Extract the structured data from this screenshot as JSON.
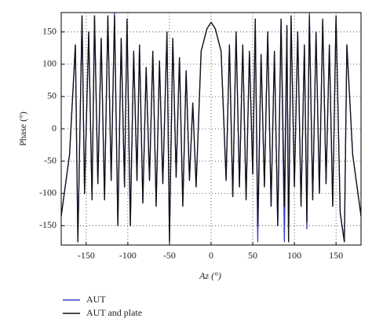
{
  "chart_data": {
    "type": "line",
    "xlabel": "Az (°)",
    "ylabel": "Phase (°)",
    "x": [
      -180,
      -170,
      -163,
      -160,
      -155,
      -152,
      -147,
      -143,
      -140,
      -136,
      -132,
      -128,
      -124,
      -120,
      -116,
      -112,
      -108,
      -104,
      -101,
      -97,
      -93,
      -89,
      -86,
      -82,
      -78,
      -74,
      -70,
      -66,
      -62,
      -58,
      -53,
      -50,
      -46,
      -42,
      -38,
      -34,
      -30,
      -26,
      -22,
      -18,
      -12,
      -5,
      0,
      5,
      12,
      18,
      22,
      26,
      30,
      34,
      38,
      42,
      46,
      50,
      53,
      56,
      60,
      64,
      68,
      72,
      76,
      80,
      84,
      88,
      91,
      93,
      96,
      100,
      104,
      108,
      112,
      115,
      118,
      122,
      126,
      130,
      134,
      138,
      142,
      146,
      150,
      155,
      160,
      163,
      170,
      180
    ],
    "series": [
      {
        "name": "AUT",
        "color": "#3a3acf",
        "values": [
          -135,
          -40,
          130,
          -175,
          175,
          -100,
          150,
          -110,
          175,
          -85,
          140,
          -110,
          175,
          -80,
          180,
          -150,
          140,
          -90,
          170,
          -150,
          120,
          -80,
          130,
          -115,
          95,
          -80,
          120,
          -120,
          105,
          -85,
          150,
          -175,
          140,
          -75,
          110,
          -120,
          90,
          -80,
          40,
          -90,
          120,
          155,
          165,
          155,
          120,
          -80,
          130,
          -105,
          150,
          -90,
          130,
          -110,
          120,
          -70,
          170,
          -175,
          115,
          -90,
          150,
          -120,
          120,
          -150,
          170,
          -175,
          160,
          -175,
          175,
          -90,
          150,
          -120,
          130,
          -155,
          180,
          -110,
          150,
          -100,
          170,
          -85,
          130,
          -120,
          175,
          -130,
          -175,
          130,
          -40,
          -135
        ]
      },
      {
        "name": "AUT and plate",
        "color": "#111111",
        "values": [
          -135,
          -40,
          130,
          -175,
          175,
          -100,
          150,
          -110,
          175,
          -85,
          140,
          -110,
          175,
          -80,
          175,
          -150,
          140,
          -90,
          170,
          -150,
          120,
          -80,
          130,
          -115,
          95,
          -80,
          120,
          -120,
          105,
          -85,
          150,
          -175,
          140,
          -75,
          110,
          -120,
          90,
          -80,
          40,
          -90,
          120,
          155,
          165,
          155,
          120,
          -80,
          130,
          -105,
          150,
          -90,
          130,
          -110,
          120,
          -70,
          170,
          -150,
          115,
          -90,
          150,
          -120,
          120,
          -150,
          170,
          -120,
          160,
          -175,
          175,
          -90,
          150,
          -120,
          130,
          -145,
          175,
          -110,
          150,
          -100,
          170,
          -85,
          130,
          -120,
          175,
          -130,
          -175,
          130,
          -40,
          -135
        ]
      }
    ],
    "xlim": [
      -180,
      180
    ],
    "ylim": [
      -180,
      180
    ],
    "xticks": [
      -150,
      -100,
      -50,
      0,
      50,
      100,
      150
    ],
    "yticks": [
      -150,
      -100,
      -50,
      0,
      50,
      100,
      150
    ],
    "grid": true
  }
}
